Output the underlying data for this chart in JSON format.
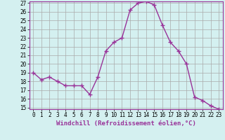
{
  "hours": [
    0,
    1,
    2,
    3,
    4,
    5,
    6,
    7,
    8,
    9,
    10,
    11,
    12,
    13,
    14,
    15,
    16,
    17,
    18,
    19,
    20,
    21,
    22,
    23
  ],
  "temps": [
    19.0,
    18.2,
    18.5,
    18.0,
    17.5,
    17.5,
    17.5,
    16.5,
    18.5,
    21.5,
    22.5,
    23.0,
    26.2,
    27.0,
    27.2,
    26.8,
    24.5,
    22.5,
    21.5,
    20.0,
    16.2,
    15.8,
    15.2,
    14.8
  ],
  "line_color": "#993399",
  "marker": "+",
  "bg_color": "#d4f0f0",
  "grid_color": "#aaaaaa",
  "xlabel": "Windchill (Refroidissement éolien,°C)",
  "ylim_min": 15,
  "ylim_max": 27,
  "yticks": [
    15,
    16,
    17,
    18,
    19,
    20,
    21,
    22,
    23,
    24,
    25,
    26,
    27
  ],
  "xticks": [
    0,
    1,
    2,
    3,
    4,
    5,
    6,
    7,
    8,
    9,
    10,
    11,
    12,
    13,
    14,
    15,
    16,
    17,
    18,
    19,
    20,
    21,
    22,
    23
  ],
  "tick_fontsize": 5.5,
  "xlabel_fontsize": 6.5,
  "spine_color": "#993399",
  "marker_size": 4,
  "linewidth": 1.0
}
